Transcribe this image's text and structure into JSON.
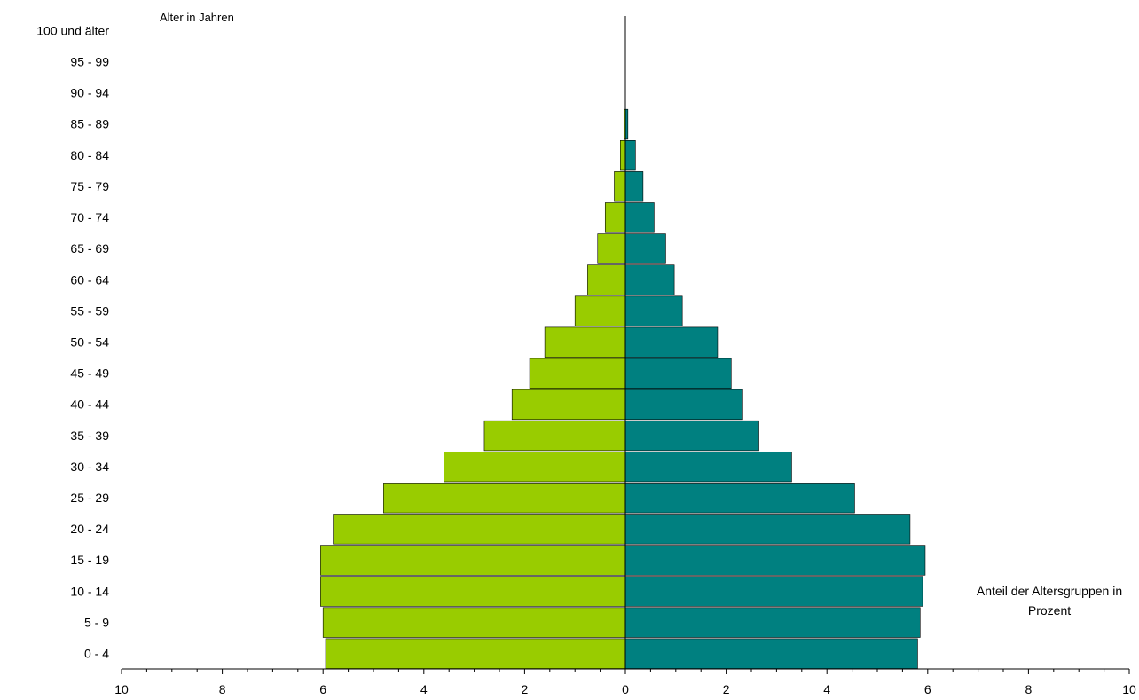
{
  "chart_data": {
    "type": "bar",
    "orientation": "horizontal",
    "layout": "population-pyramid",
    "ylabel": "Alter in Jahren",
    "xlabel": "Anteil der Altersgruppen in Prozent",
    "categories": [
      "0 - 4",
      "5 - 9",
      "10 - 14",
      "15 - 19",
      "20 - 24",
      "25 - 29",
      "30 - 34",
      "35 - 39",
      "40 - 44",
      "45 - 49",
      "50 - 54",
      "55 - 59",
      "60 - 64",
      "65 - 69",
      "70 - 74",
      "75 - 79",
      "80 - 84",
      "85 - 89",
      "90 - 94",
      "95 - 99",
      "100 und älter"
    ],
    "series": [
      {
        "side": "left",
        "color": "#99cc00",
        "values": [
          5.95,
          6.0,
          6.05,
          6.05,
          5.8,
          4.8,
          3.6,
          2.8,
          2.25,
          1.9,
          1.6,
          1.0,
          0.75,
          0.55,
          0.4,
          0.22,
          0.1,
          0.03,
          0,
          0,
          0
        ]
      },
      {
        "side": "right",
        "color": "#008080",
        "values": [
          5.8,
          5.85,
          5.9,
          5.95,
          5.65,
          4.55,
          3.3,
          2.65,
          2.33,
          2.1,
          1.83,
          1.13,
          0.97,
          0.8,
          0.57,
          0.35,
          0.2,
          0.05,
          0,
          0,
          0
        ]
      }
    ],
    "xlim": [
      -10,
      10
    ],
    "xticks": [
      -10,
      -8,
      -6,
      -4,
      -2,
      0,
      2,
      4,
      6,
      8,
      10
    ],
    "xtick_labels": [
      "10",
      "8",
      "6",
      "4",
      "2",
      "0",
      "2",
      "4",
      "6",
      "8",
      "10"
    ],
    "grid": false,
    "legend": "none"
  }
}
